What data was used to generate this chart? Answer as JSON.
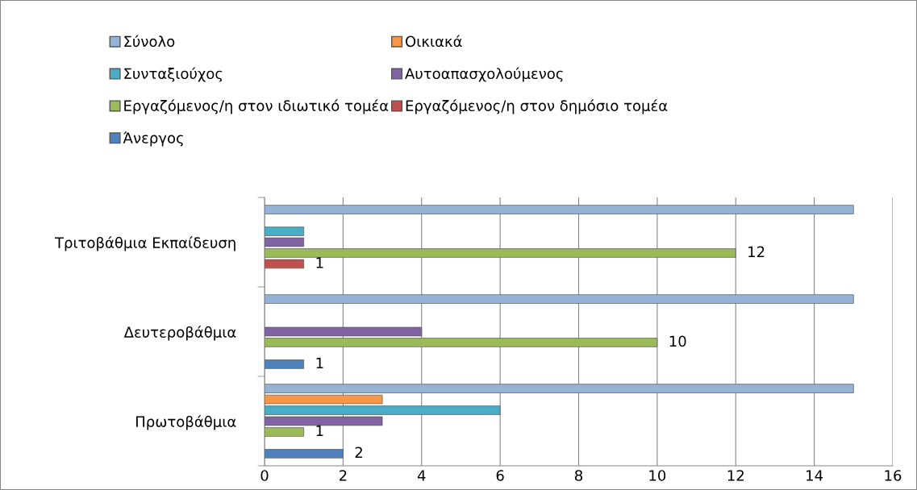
{
  "chart_data": {
    "type": "bar",
    "orientation": "horizontal",
    "categories": [
      "Τριτοβάθμια Εκπαίδευση",
      "Δευτεροβάθμια",
      "Πρωτοβάθμια"
    ],
    "series": [
      {
        "name": "Σύνολο",
        "color": "#95b3d7",
        "values": [
          15,
          15,
          15
        ]
      },
      {
        "name": "Οικιακά",
        "color": "#f79646",
        "values": [
          null,
          null,
          3
        ]
      },
      {
        "name": "Συνταξιούχος",
        "color": "#4bacc6",
        "values": [
          1,
          null,
          6
        ]
      },
      {
        "name": "Αυτοαπασχολούμενος",
        "color": "#8064a2",
        "values": [
          1,
          4,
          3
        ]
      },
      {
        "name": "Εργαζόμενος/η στον ιδιωτικό τομέα",
        "color": "#9bbb59",
        "values": [
          12,
          10,
          1
        ],
        "value_labels": [
          "12",
          "10",
          "1"
        ]
      },
      {
        "name": "Εργαζόμενος/η στον δημόσιο τομέα",
        "color": "#c0504d",
        "values": [
          1,
          null,
          null
        ],
        "value_labels": [
          "1",
          null,
          null
        ]
      },
      {
        "name": "Άνεργος",
        "color": "#4f81bd",
        "values": [
          null,
          1,
          2
        ],
        "value_labels": [
          null,
          "1",
          "2"
        ]
      }
    ],
    "xlim": [
      0,
      16
    ],
    "xticks": [
      0,
      2,
      4,
      6,
      8,
      10,
      12,
      14,
      16
    ],
    "grid": "x",
    "legend": "top"
  }
}
